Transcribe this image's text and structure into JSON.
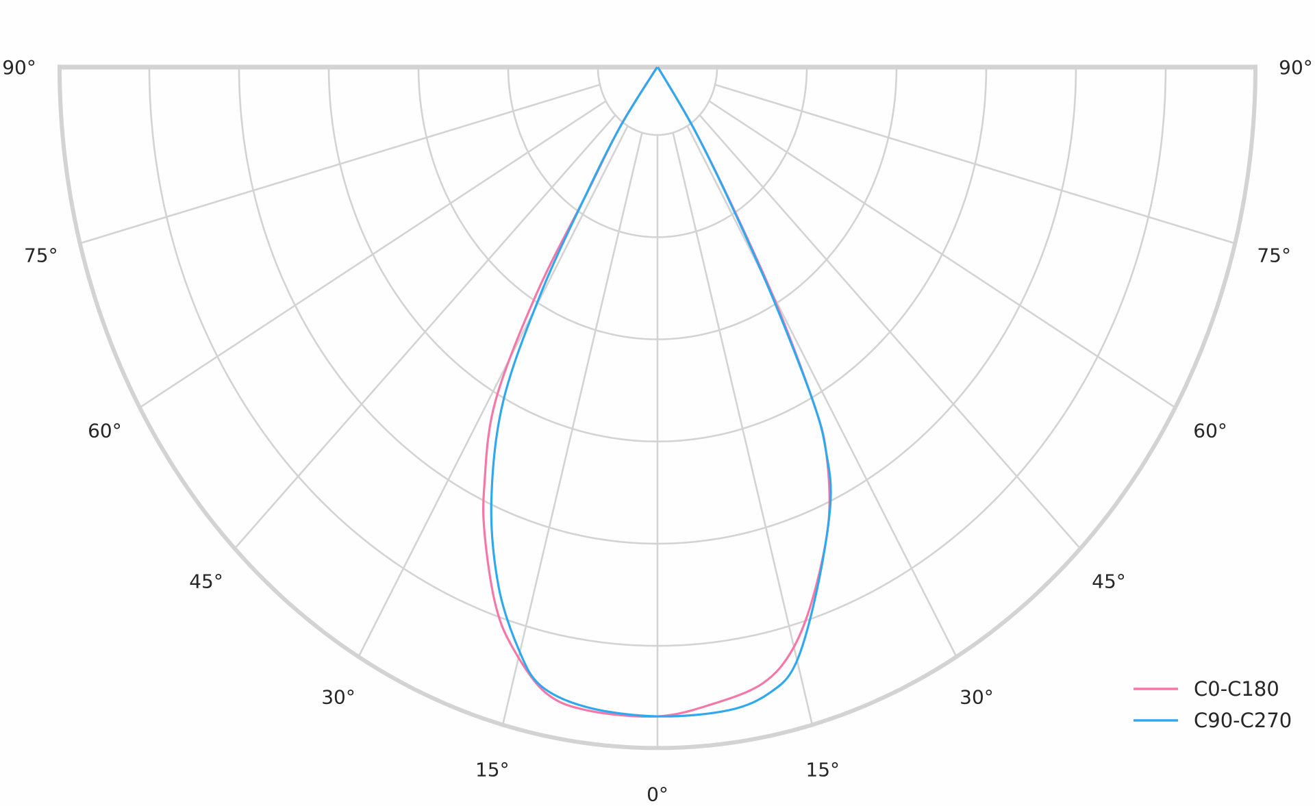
{
  "chart_data": {
    "type": "line",
    "projection": "polar (half, lower)",
    "angle_tick_labels_left": [
      "90°",
      "75°",
      "60°",
      "45°",
      "30°",
      "15°"
    ],
    "angle_tick_labels_right": [
      "90°",
      "75°",
      "60°",
      "45°",
      "30°",
      "15°"
    ],
    "angle_tick_label_center": "0°",
    "angle_ticks": [
      -90,
      -75,
      -60,
      -45,
      -30,
      -15,
      0,
      15,
      30,
      45,
      60,
      75,
      90
    ],
    "radial_grid": [
      0,
      1,
      2,
      3,
      4,
      5
    ],
    "radial_range": [
      -0.66,
      6
    ],
    "radial_tick_labels": false,
    "grid": true,
    "legend": {
      "placement": "bottom-right"
    },
    "series": [
      {
        "name": "C0-C180",
        "color": "#f577a8",
        "points": [
          [
            -90,
            -0.66
          ],
          [
            -35.6,
            0.04
          ],
          [
            -32.5,
            0.8
          ],
          [
            -31.3,
            1.93
          ],
          [
            -28.9,
            3.08
          ],
          [
            -25.2,
            3.87
          ],
          [
            -22.7,
            4.32
          ],
          [
            -19,
            4.89
          ],
          [
            -16,
            5.23
          ],
          [
            -11.6,
            5.58
          ],
          [
            -7.1,
            5.68
          ],
          [
            0,
            5.69
          ],
          [
            5.6,
            5.6
          ],
          [
            11,
            5.48
          ],
          [
            14.8,
            5.23
          ],
          [
            18.6,
            4.79
          ],
          [
            23.3,
            4.16
          ],
          [
            26.5,
            3.55
          ],
          [
            27.9,
            3.05
          ],
          [
            29.8,
            1.98
          ],
          [
            31.6,
            0.88
          ],
          [
            34,
            0.05
          ],
          [
            90,
            -0.66
          ]
        ]
      },
      {
        "name": "C90-C270",
        "color": "#30a8ee",
        "points": [
          [
            -90,
            -0.66
          ],
          [
            -35.5,
            0.04
          ],
          [
            -32.6,
            0.8
          ],
          [
            -30.4,
            1.91
          ],
          [
            -27.7,
            3.04
          ],
          [
            -23.5,
            3.98
          ],
          [
            -19.2,
            4.72
          ],
          [
            -15.2,
            5.24
          ],
          [
            -12.1,
            5.53
          ],
          [
            -7.1,
            5.65
          ],
          [
            0,
            5.69
          ],
          [
            7.2,
            5.68
          ],
          [
            11.7,
            5.58
          ],
          [
            14.9,
            5.36
          ],
          [
            19.3,
            4.73
          ],
          [
            24.3,
            4.02
          ],
          [
            26.5,
            3.55
          ],
          [
            27.9,
            3.05
          ],
          [
            29.6,
            1.95
          ],
          [
            31.5,
            0.86
          ],
          [
            34,
            0.04
          ],
          [
            90,
            -0.66
          ]
        ]
      }
    ]
  }
}
